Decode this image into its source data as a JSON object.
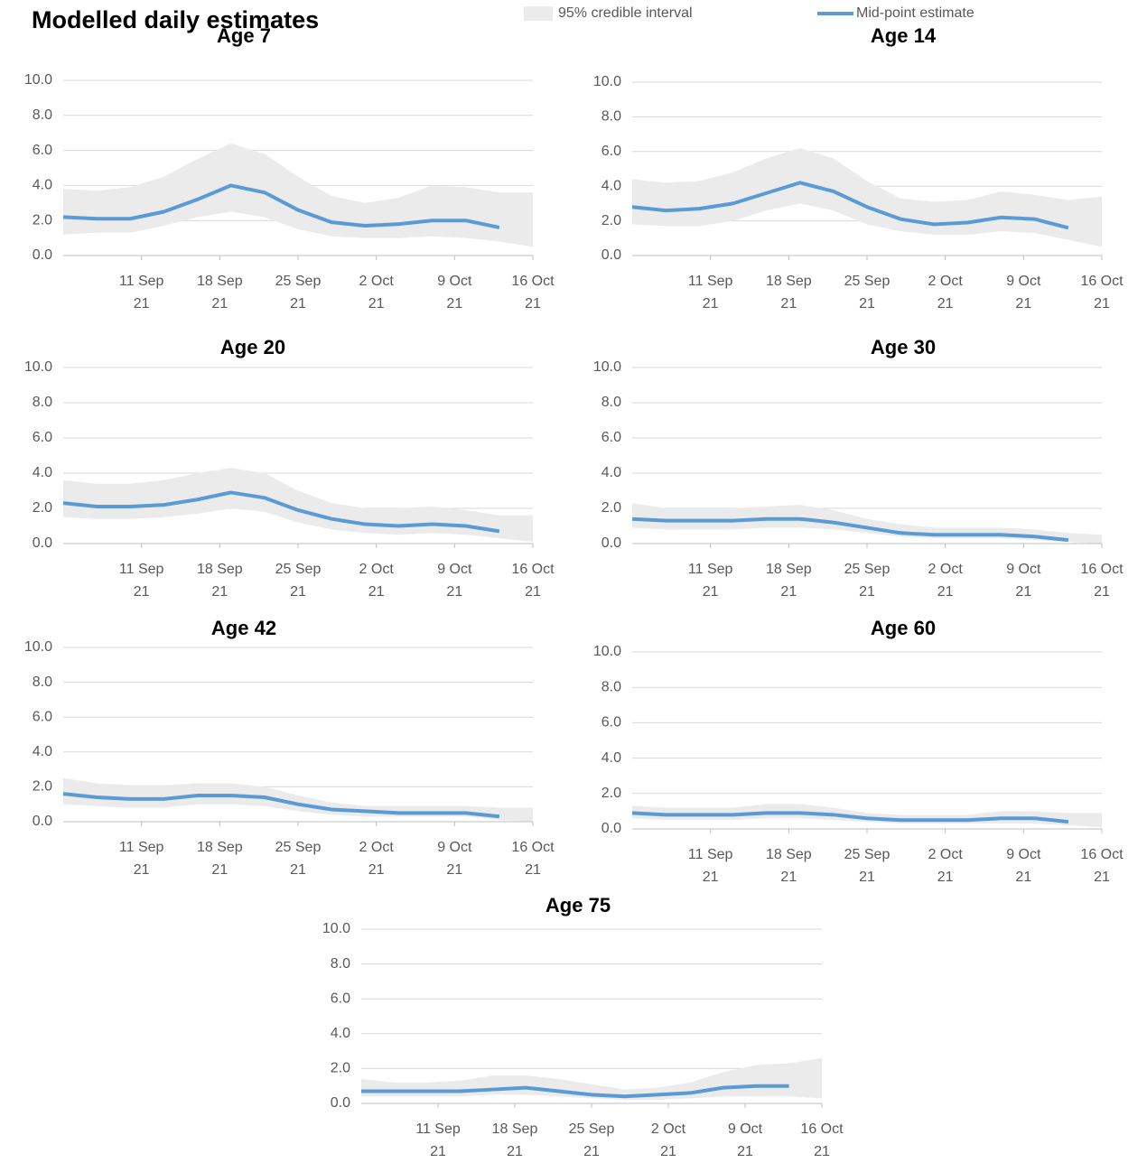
{
  "title": "Modelled daily estimates",
  "chart_data": [
    {
      "type": "line",
      "title": "Age 7",
      "x": [
        "2021-09-04",
        "2021-09-07",
        "2021-09-10",
        "2021-09-13",
        "2021-09-16",
        "2021-09-19",
        "2021-09-22",
        "2021-09-25",
        "2021-09-28",
        "2021-10-01",
        "2021-10-04",
        "2021-10-07",
        "2021-10-10",
        "2021-10-13",
        "2021-10-16"
      ],
      "series": [
        {
          "name": "95% credible interval",
          "color": "#ebebeb",
          "upper": [
            3.8,
            3.7,
            3.9,
            4.5,
            5.5,
            6.4,
            5.8,
            4.5,
            3.4,
            3.0,
            3.3,
            4.0,
            3.9,
            3.6,
            3.6
          ],
          "lower": [
            1.2,
            1.3,
            1.3,
            1.7,
            2.2,
            2.5,
            2.2,
            1.5,
            1.1,
            1.0,
            1.0,
            1.1,
            1.0,
            0.8,
            0.5
          ]
        },
        {
          "name": "Mid-point estimate",
          "color": "#5b9bd5",
          "values": [
            2.2,
            2.1,
            2.1,
            2.5,
            3.2,
            4.0,
            3.6,
            2.6,
            1.9,
            1.7,
            1.8,
            2.0,
            2.0,
            1.6,
            null
          ]
        }
      ],
      "xlim": [
        "2021-09-04",
        "2021-10-16"
      ],
      "xticks": [
        {
          "value": "2021-09-11",
          "label": "11 Sep\n21"
        },
        {
          "value": "2021-09-18",
          "label": "18 Sep\n21"
        },
        {
          "value": "2021-09-25",
          "label": "25 Sep\n21"
        },
        {
          "value": "2021-10-02",
          "label": "2 Oct\n21"
        },
        {
          "value": "2021-10-09",
          "label": "9 Oct\n21"
        },
        {
          "value": "2021-10-16",
          "label": "16 Oct\n21"
        }
      ],
      "ylim": [
        0,
        10
      ],
      "yticks": [
        {
          "value": 0,
          "label": "0.0"
        },
        {
          "value": 2,
          "label": "2.0"
        },
        {
          "value": 4,
          "label": "4.0"
        },
        {
          "value": 6,
          "label": "6.0"
        },
        {
          "value": 8,
          "label": "8.0"
        },
        {
          "value": 10,
          "label": "10.0"
        }
      ],
      "grid": true
    },
    {
      "type": "line",
      "title": "Age 14",
      "x": [
        "2021-09-04",
        "2021-09-07",
        "2021-09-10",
        "2021-09-13",
        "2021-09-16",
        "2021-09-19",
        "2021-09-22",
        "2021-09-25",
        "2021-09-28",
        "2021-10-01",
        "2021-10-04",
        "2021-10-07",
        "2021-10-10",
        "2021-10-13",
        "2021-10-16"
      ],
      "series": [
        {
          "name": "95% credible interval",
          "color": "#ebebeb",
          "upper": [
            4.4,
            4.2,
            4.3,
            4.8,
            5.6,
            6.2,
            5.6,
            4.3,
            3.3,
            3.1,
            3.2,
            3.7,
            3.5,
            3.2,
            3.4
          ],
          "lower": [
            1.8,
            1.7,
            1.7,
            2.0,
            2.6,
            3.0,
            2.6,
            1.8,
            1.4,
            1.2,
            1.2,
            1.4,
            1.3,
            0.9,
            0.5
          ]
        },
        {
          "name": "Mid-point estimate",
          "color": "#5b9bd5",
          "values": [
            2.8,
            2.6,
            2.7,
            3.0,
            3.6,
            4.2,
            3.7,
            2.8,
            2.1,
            1.8,
            1.9,
            2.2,
            2.1,
            1.6,
            null
          ]
        }
      ],
      "xlim": [
        "2021-09-04",
        "2021-10-16"
      ],
      "xticks": [
        {
          "value": "2021-09-11",
          "label": "11 Sep\n21"
        },
        {
          "value": "2021-09-18",
          "label": "18 Sep\n21"
        },
        {
          "value": "2021-09-25",
          "label": "25 Sep\n21"
        },
        {
          "value": "2021-10-02",
          "label": "2 Oct\n21"
        },
        {
          "value": "2021-10-09",
          "label": "9 Oct\n21"
        },
        {
          "value": "2021-10-16",
          "label": "16 Oct\n21"
        }
      ],
      "ylim": [
        0,
        10
      ],
      "yticks": [
        {
          "value": 0,
          "label": "0.0"
        },
        {
          "value": 2,
          "label": "2.0"
        },
        {
          "value": 4,
          "label": "4.0"
        },
        {
          "value": 6,
          "label": "6.0"
        },
        {
          "value": 8,
          "label": "8.0"
        },
        {
          "value": 10,
          "label": "10.0"
        }
      ],
      "grid": true
    },
    {
      "type": "line",
      "title": "Age 20",
      "x": [
        "2021-09-04",
        "2021-09-07",
        "2021-09-10",
        "2021-09-13",
        "2021-09-16",
        "2021-09-19",
        "2021-09-22",
        "2021-09-25",
        "2021-09-28",
        "2021-10-01",
        "2021-10-04",
        "2021-10-07",
        "2021-10-10",
        "2021-10-13",
        "2021-10-16"
      ],
      "series": [
        {
          "name": "95% credible interval",
          "color": "#ebebeb",
          "upper": [
            3.6,
            3.4,
            3.4,
            3.6,
            4.0,
            4.3,
            4.0,
            3.0,
            2.3,
            2.0,
            2.0,
            2.1,
            1.9,
            1.6,
            1.6
          ],
          "lower": [
            1.5,
            1.4,
            1.4,
            1.5,
            1.7,
            2.0,
            1.8,
            1.2,
            0.8,
            0.6,
            0.5,
            0.6,
            0.5,
            0.3,
            0.1
          ]
        },
        {
          "name": "Mid-point estimate",
          "color": "#5b9bd5",
          "values": [
            2.3,
            2.1,
            2.1,
            2.2,
            2.5,
            2.9,
            2.6,
            1.9,
            1.4,
            1.1,
            1.0,
            1.1,
            1.0,
            0.7,
            null
          ]
        }
      ],
      "xlim": [
        "2021-09-04",
        "2021-10-16"
      ],
      "xticks": [
        {
          "value": "2021-09-11",
          "label": "11 Sep\n21"
        },
        {
          "value": "2021-09-18",
          "label": "18 Sep\n21"
        },
        {
          "value": "2021-09-25",
          "label": "25 Sep\n21"
        },
        {
          "value": "2021-10-02",
          "label": "2 Oct\n21"
        },
        {
          "value": "2021-10-09",
          "label": "9 Oct\n21"
        },
        {
          "value": "2021-10-16",
          "label": "16 Oct\n21"
        }
      ],
      "ylim": [
        0,
        10
      ],
      "yticks": [
        {
          "value": 0,
          "label": "0.0"
        },
        {
          "value": 2,
          "label": "2.0"
        },
        {
          "value": 4,
          "label": "4.0"
        },
        {
          "value": 6,
          "label": "6.0"
        },
        {
          "value": 8,
          "label": "8.0"
        },
        {
          "value": 10,
          "label": "10.0"
        }
      ],
      "grid": true
    },
    {
      "type": "line",
      "title": "Age 30",
      "x": [
        "2021-09-04",
        "2021-09-07",
        "2021-09-10",
        "2021-09-13",
        "2021-09-16",
        "2021-09-19",
        "2021-09-22",
        "2021-09-25",
        "2021-09-28",
        "2021-10-01",
        "2021-10-04",
        "2021-10-07",
        "2021-10-10",
        "2021-10-13",
        "2021-10-16"
      ],
      "series": [
        {
          "name": "95% credible interval",
          "color": "#ebebeb",
          "upper": [
            2.3,
            2.0,
            2.0,
            2.0,
            2.1,
            2.2,
            1.9,
            1.4,
            1.1,
            0.9,
            0.9,
            0.9,
            0.8,
            0.6,
            0.5
          ],
          "lower": [
            0.9,
            0.8,
            0.8,
            0.8,
            0.9,
            0.9,
            0.8,
            0.6,
            0.4,
            0.3,
            0.3,
            0.3,
            0.2,
            0.1,
            0.0
          ]
        },
        {
          "name": "Mid-point estimate",
          "color": "#5b9bd5",
          "values": [
            1.4,
            1.3,
            1.3,
            1.3,
            1.4,
            1.4,
            1.2,
            0.9,
            0.6,
            0.5,
            0.5,
            0.5,
            0.4,
            0.2,
            null
          ]
        }
      ],
      "xlim": [
        "2021-09-04",
        "2021-10-16"
      ],
      "xticks": [
        {
          "value": "2021-09-11",
          "label": "11 Sep\n21"
        },
        {
          "value": "2021-09-18",
          "label": "18 Sep\n21"
        },
        {
          "value": "2021-09-25",
          "label": "25 Sep\n21"
        },
        {
          "value": "2021-10-02",
          "label": "2 Oct\n21"
        },
        {
          "value": "2021-10-09",
          "label": "9 Oct\n21"
        },
        {
          "value": "2021-10-16",
          "label": "16 Oct\n21"
        }
      ],
      "ylim": [
        0,
        10
      ],
      "yticks": [
        {
          "value": 0,
          "label": "0.0"
        },
        {
          "value": 2,
          "label": "2.0"
        },
        {
          "value": 4,
          "label": "4.0"
        },
        {
          "value": 6,
          "label": "6.0"
        },
        {
          "value": 8,
          "label": "8.0"
        },
        {
          "value": 10,
          "label": "10.0"
        }
      ],
      "grid": true
    },
    {
      "type": "line",
      "title": "Age 42",
      "x": [
        "2021-09-04",
        "2021-09-07",
        "2021-09-10",
        "2021-09-13",
        "2021-09-16",
        "2021-09-19",
        "2021-09-22",
        "2021-09-25",
        "2021-09-28",
        "2021-10-01",
        "2021-10-04",
        "2021-10-07",
        "2021-10-10",
        "2021-10-13",
        "2021-10-16"
      ],
      "series": [
        {
          "name": "95% credible interval",
          "color": "#ebebeb",
          "upper": [
            2.5,
            2.2,
            2.1,
            2.1,
            2.2,
            2.2,
            2.0,
            1.5,
            1.1,
            0.9,
            0.9,
            0.9,
            0.9,
            0.8,
            0.8
          ],
          "lower": [
            1.0,
            0.9,
            0.8,
            0.8,
            1.0,
            1.0,
            0.9,
            0.6,
            0.4,
            0.3,
            0.3,
            0.3,
            0.3,
            0.1,
            0.0
          ]
        },
        {
          "name": "Mid-point estimate",
          "color": "#5b9bd5",
          "values": [
            1.6,
            1.4,
            1.3,
            1.3,
            1.5,
            1.5,
            1.4,
            1.0,
            0.7,
            0.6,
            0.5,
            0.5,
            0.5,
            0.3,
            null
          ]
        }
      ],
      "xlim": [
        "2021-09-04",
        "2021-10-16"
      ],
      "xticks": [
        {
          "value": "2021-09-11",
          "label": "11 Sep\n21"
        },
        {
          "value": "2021-09-18",
          "label": "18 Sep\n21"
        },
        {
          "value": "2021-09-25",
          "label": "25 Sep\n21"
        },
        {
          "value": "2021-10-02",
          "label": "2 Oct\n21"
        },
        {
          "value": "2021-10-09",
          "label": "9 Oct\n21"
        },
        {
          "value": "2021-10-16",
          "label": "16 Oct\n21"
        }
      ],
      "ylim": [
        0,
        10
      ],
      "yticks": [
        {
          "value": 0,
          "label": "0.0"
        },
        {
          "value": 2,
          "label": "2.0"
        },
        {
          "value": 4,
          "label": "4.0"
        },
        {
          "value": 6,
          "label": "6.0"
        },
        {
          "value": 8,
          "label": "8.0"
        },
        {
          "value": 10,
          "label": "10.0"
        }
      ],
      "grid": true
    },
    {
      "type": "line",
      "title": "Age 60",
      "x": [
        "2021-09-04",
        "2021-09-07",
        "2021-09-10",
        "2021-09-13",
        "2021-09-16",
        "2021-09-19",
        "2021-09-22",
        "2021-09-25",
        "2021-09-28",
        "2021-10-01",
        "2021-10-04",
        "2021-10-07",
        "2021-10-10",
        "2021-10-13",
        "2021-10-16"
      ],
      "series": [
        {
          "name": "95% credible interval",
          "color": "#ebebeb",
          "upper": [
            1.3,
            1.2,
            1.2,
            1.2,
            1.4,
            1.4,
            1.2,
            0.9,
            0.8,
            0.8,
            0.8,
            1.0,
            1.0,
            0.9,
            0.9
          ],
          "lower": [
            0.6,
            0.5,
            0.5,
            0.5,
            0.6,
            0.6,
            0.5,
            0.4,
            0.3,
            0.3,
            0.3,
            0.3,
            0.3,
            0.2,
            0.1
          ]
        },
        {
          "name": "Mid-point estimate",
          "color": "#5b9bd5",
          "values": [
            0.9,
            0.8,
            0.8,
            0.8,
            0.9,
            0.9,
            0.8,
            0.6,
            0.5,
            0.5,
            0.5,
            0.6,
            0.6,
            0.4,
            null
          ]
        }
      ],
      "xlim": [
        "2021-09-04",
        "2021-10-16"
      ],
      "xticks": [
        {
          "value": "2021-09-11",
          "label": "11 Sep\n21"
        },
        {
          "value": "2021-09-18",
          "label": "18 Sep\n21"
        },
        {
          "value": "2021-09-25",
          "label": "25 Sep\n21"
        },
        {
          "value": "2021-10-02",
          "label": "2 Oct\n21"
        },
        {
          "value": "2021-10-09",
          "label": "9 Oct\n21"
        },
        {
          "value": "2021-10-16",
          "label": "16 Oct\n21"
        }
      ],
      "ylim": [
        0,
        10
      ],
      "yticks": [
        {
          "value": 0,
          "label": "0.0"
        },
        {
          "value": 2,
          "label": "2.0"
        },
        {
          "value": 4,
          "label": "4.0"
        },
        {
          "value": 6,
          "label": "6.0"
        },
        {
          "value": 8,
          "label": "8.0"
        },
        {
          "value": 10,
          "label": "10.0"
        }
      ],
      "grid": true
    },
    {
      "type": "line",
      "title": "Age 75",
      "x": [
        "2021-09-04",
        "2021-09-07",
        "2021-09-10",
        "2021-09-13",
        "2021-09-16",
        "2021-09-19",
        "2021-09-22",
        "2021-09-25",
        "2021-09-28",
        "2021-10-01",
        "2021-10-04",
        "2021-10-07",
        "2021-10-10",
        "2021-10-13",
        "2021-10-16"
      ],
      "series": [
        {
          "name": "95% credible interval",
          "color": "#ebebeb",
          "upper": [
            1.4,
            1.2,
            1.2,
            1.3,
            1.6,
            1.6,
            1.4,
            1.1,
            0.8,
            0.9,
            1.2,
            1.8,
            2.2,
            2.3,
            2.6
          ],
          "lower": [
            0.4,
            0.4,
            0.4,
            0.4,
            0.5,
            0.5,
            0.4,
            0.3,
            0.2,
            0.2,
            0.3,
            0.4,
            0.4,
            0.4,
            0.3
          ]
        },
        {
          "name": "Mid-point estimate",
          "color": "#5b9bd5",
          "values": [
            0.7,
            0.7,
            0.7,
            0.7,
            0.8,
            0.9,
            0.7,
            0.5,
            0.4,
            0.5,
            0.6,
            0.9,
            1.0,
            1.0,
            null
          ]
        }
      ],
      "xlim": [
        "2021-09-04",
        "2021-10-16"
      ],
      "xticks": [
        {
          "value": "2021-09-11",
          "label": "11 Sep\n21"
        },
        {
          "value": "2021-09-18",
          "label": "18 Sep\n21"
        },
        {
          "value": "2021-09-25",
          "label": "25 Sep\n21"
        },
        {
          "value": "2021-10-02",
          "label": "2 Oct\n21"
        },
        {
          "value": "2021-10-09",
          "label": "9 Oct\n21"
        },
        {
          "value": "2021-10-16",
          "label": "16 Oct\n21"
        }
      ],
      "ylim": [
        0,
        10
      ],
      "yticks": [
        {
          "value": 0,
          "label": "0.0"
        },
        {
          "value": 2,
          "label": "2.0"
        },
        {
          "value": 4,
          "label": "4.0"
        },
        {
          "value": 6,
          "label": "6.0"
        },
        {
          "value": 8,
          "label": "8.0"
        },
        {
          "value": 10,
          "label": "10.0"
        }
      ],
      "grid": true
    }
  ]
}
